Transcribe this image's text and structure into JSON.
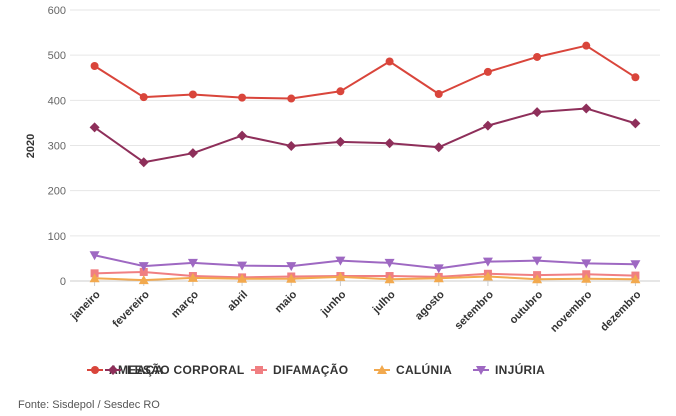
{
  "chart_data": {
    "type": "line",
    "ylabel": "2020",
    "xlabel": "",
    "ylim": [
      0,
      600
    ],
    "yticks": [
      0,
      100,
      200,
      300,
      400,
      500,
      600
    ],
    "grid": true,
    "legend_position": "bottom",
    "categories": [
      "janeiro",
      "fevereiro",
      "março",
      "abril",
      "maio",
      "junho",
      "julho",
      "agosto",
      "setembro",
      "outubro",
      "novembro",
      "dezembro"
    ],
    "series": [
      {
        "name": "AMEAÇA",
        "color": "#d9453b",
        "marker": "circle",
        "values": [
          476,
          407,
          413,
          406,
          404,
          420,
          486,
          414,
          463,
          496,
          521,
          451
        ]
      },
      {
        "name": "LESÃO CORPORAL",
        "color": "#8e2f5a",
        "marker": "diamond",
        "values": [
          340,
          263,
          283,
          322,
          299,
          308,
          305,
          296,
          344,
          374,
          382,
          349
        ]
      },
      {
        "name": "DIFAMAÇÃO",
        "color": "#f07f82",
        "marker": "square",
        "values": [
          17,
          20,
          11,
          8,
          10,
          11,
          11,
          9,
          16,
          13,
          15,
          12
        ]
      },
      {
        "name": "CALÚNIA",
        "color": "#f2a94e",
        "marker": "triangle-up",
        "values": [
          6,
          2,
          7,
          5,
          5,
          9,
          4,
          6,
          10,
          4,
          5,
          4
        ]
      },
      {
        "name": "INJÚRIA",
        "color": "#9e68c2",
        "marker": "triangle-down",
        "values": [
          57,
          33,
          40,
          34,
          33,
          45,
          40,
          28,
          43,
          45,
          39,
          37
        ]
      }
    ]
  },
  "source": "Fonte: Sisdepol / Sesdec RO"
}
